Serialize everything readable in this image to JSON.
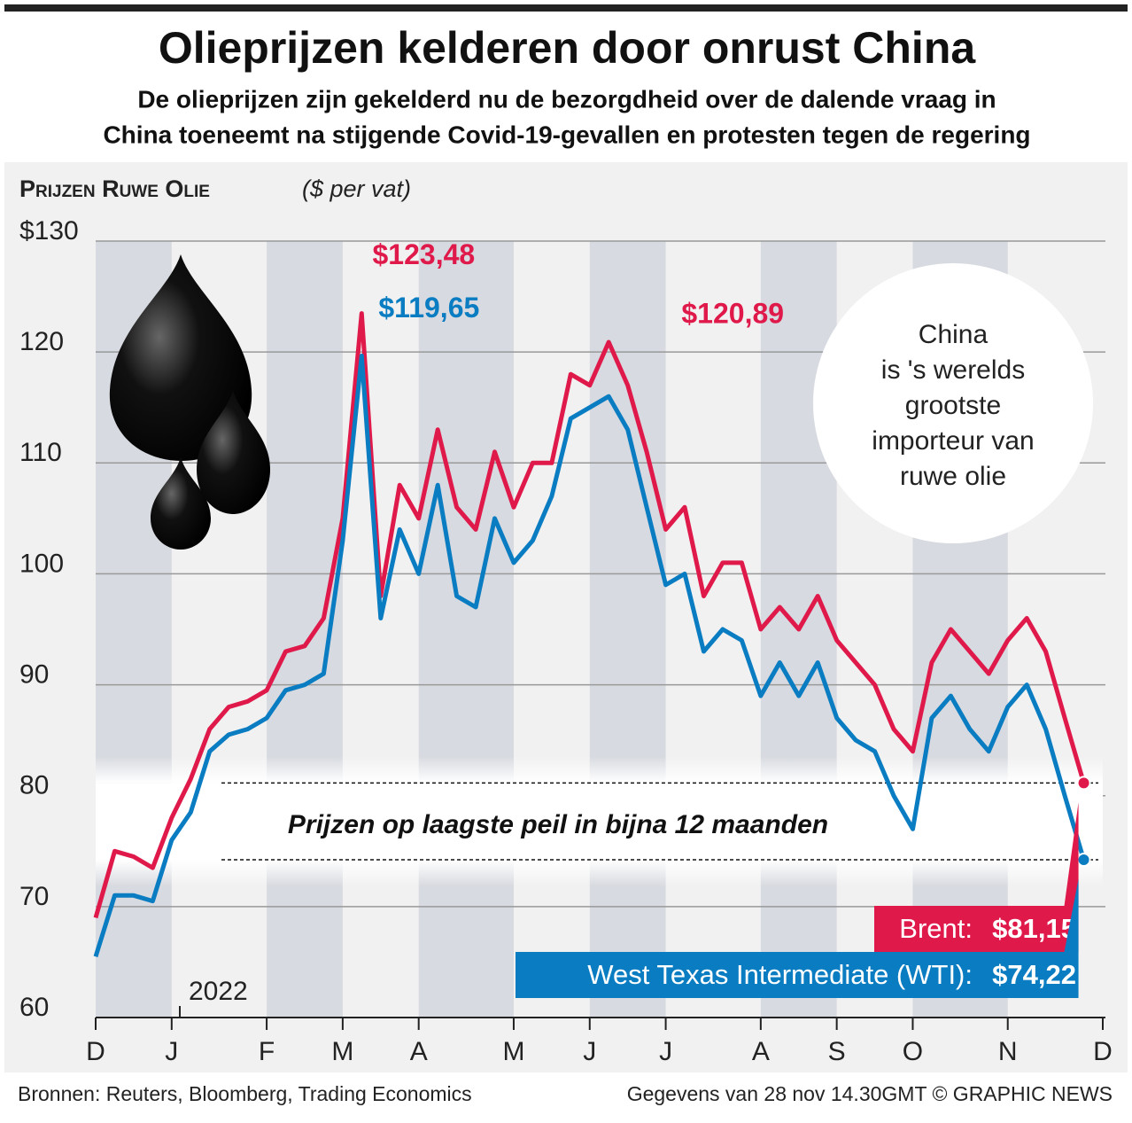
{
  "chart_data": {
    "type": "line",
    "title": "Olieprijzen kelderen door onrust China",
    "subtitle": [
      "De olieprijzen zijn gekelderd nu de bezorgdheid over de dalende vraag in",
      "China toeneemt na stijgende Covid-19-gevallen en protesten tegen de regering"
    ],
    "y_label": "Prijzen Ruwe Olie",
    "y_unit": "($ per vat)",
    "year_label": "2022",
    "categories": [
      "D",
      null,
      null,
      null,
      "J",
      null,
      null,
      null,
      null,
      "F",
      null,
      null,
      null,
      "M",
      null,
      null,
      null,
      "A",
      null,
      null,
      null,
      null,
      "M",
      null,
      null,
      null,
      "J",
      null,
      null,
      null,
      "J",
      null,
      null,
      null,
      null,
      "A",
      null,
      null,
      null,
      "S",
      null,
      null,
      null,
      "O",
      null,
      null,
      null,
      null,
      "N",
      null,
      null,
      null,
      null,
      "D"
    ],
    "series": [
      {
        "name": "Brent:",
        "color": "#e0194b",
        "values": [
          69,
          75,
          74.5,
          73.5,
          78,
          81.5,
          86,
          88,
          88.5,
          89.5,
          93,
          93.5,
          96,
          105,
          123.48,
          98,
          108,
          105,
          113,
          106,
          104,
          111,
          106,
          110,
          110,
          118,
          117,
          120.89,
          117,
          111,
          104,
          106,
          98,
          101,
          101,
          95,
          97,
          95,
          98,
          94,
          92,
          90,
          86,
          84,
          92,
          95,
          93,
          91,
          94,
          96,
          93,
          87,
          81.15,
          null
        ],
        "value_labels": [
          null,
          null,
          null,
          null,
          null,
          null,
          null,
          null,
          null,
          null,
          null,
          null,
          null,
          null,
          "$123,48",
          null,
          null,
          null,
          null,
          null,
          null,
          null,
          null,
          null,
          null,
          null,
          null,
          "$120,89",
          null,
          null,
          null,
          null,
          null,
          null,
          null,
          null,
          null,
          null,
          null,
          null,
          null,
          null,
          null,
          null,
          null,
          null,
          null,
          null,
          null,
          null,
          null,
          null,
          "$81,15",
          null
        ]
      },
      {
        "name": "West Texas Intermediate (WTI):",
        "color": "#0a7cc1",
        "values": [
          65.5,
          71,
          71,
          70.5,
          76,
          78.5,
          84,
          85.5,
          86,
          87,
          89.5,
          90,
          91,
          103,
          119.65,
          96,
          104,
          100,
          108,
          98,
          97,
          105,
          101,
          103,
          107,
          114,
          115,
          116,
          113,
          106,
          99,
          100,
          93,
          95,
          94,
          89,
          92,
          89,
          92,
          87,
          85,
          84,
          80,
          77,
          87,
          89,
          86,
          84,
          88,
          90,
          86,
          80,
          74.22,
          null
        ],
        "value_labels": [
          null,
          null,
          null,
          null,
          null,
          null,
          null,
          null,
          null,
          null,
          null,
          null,
          null,
          null,
          "$119,65",
          null,
          null,
          null,
          null,
          null,
          null,
          null,
          null,
          null,
          null,
          null,
          null,
          null,
          null,
          null,
          null,
          null,
          null,
          null,
          null,
          null,
          null,
          null,
          null,
          null,
          null,
          null,
          null,
          null,
          null,
          null,
          null,
          null,
          null,
          null,
          null,
          null,
          "$74,22",
          null
        ]
      }
    ],
    "ylim": [
      60,
      130
    ],
    "yticks": [
      60,
      70,
      80,
      90,
      100,
      110,
      120,
      {
        "value": 130,
        "label": "$130"
      }
    ],
    "grid": true,
    "band_note": "Prijzen op laagste peil in bijna 12 maanden",
    "bubble": [
      "China",
      "is 's werelds",
      "grootste",
      "importeur van",
      "ruwe olie"
    ],
    "source": "Bronnen: Reuters, Bloomberg, Trading Economics",
    "credit": "Gegevens van 28 nov 14.30GMT © GRAPHIC NEWS"
  }
}
